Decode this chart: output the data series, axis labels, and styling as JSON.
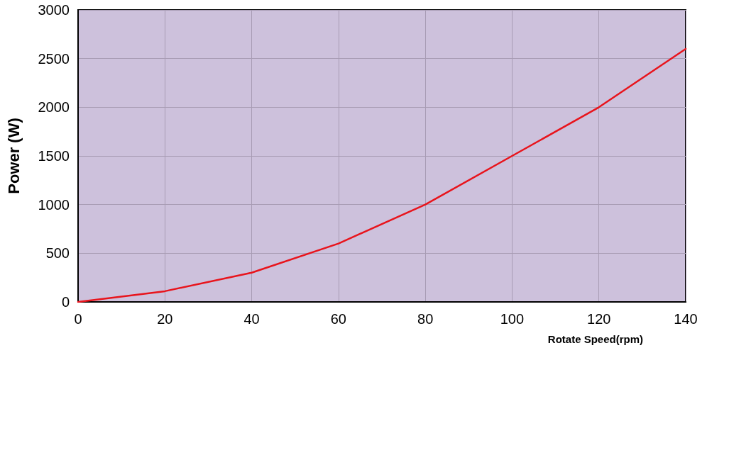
{
  "chart_data": {
    "type": "line",
    "xlabel": "Rotate Speed(rpm)",
    "ylabel": "Power (W)",
    "x": [
      0,
      20,
      40,
      60,
      80,
      100,
      120,
      140
    ],
    "series": [
      {
        "color": "#e8141c",
        "values": [
          0,
          110,
          300,
          600,
          1000,
          1500,
          2000,
          2600
        ]
      }
    ],
    "xlim": [
      0,
      140
    ],
    "xticks": [
      0,
      20,
      40,
      60,
      80,
      100,
      120,
      140
    ],
    "ylim": [
      0,
      3000
    ],
    "yticks": [
      0,
      500,
      1000,
      1500,
      2000,
      2500,
      3000
    ],
    "grid": true,
    "marker": "none",
    "line_style": "solid"
  }
}
